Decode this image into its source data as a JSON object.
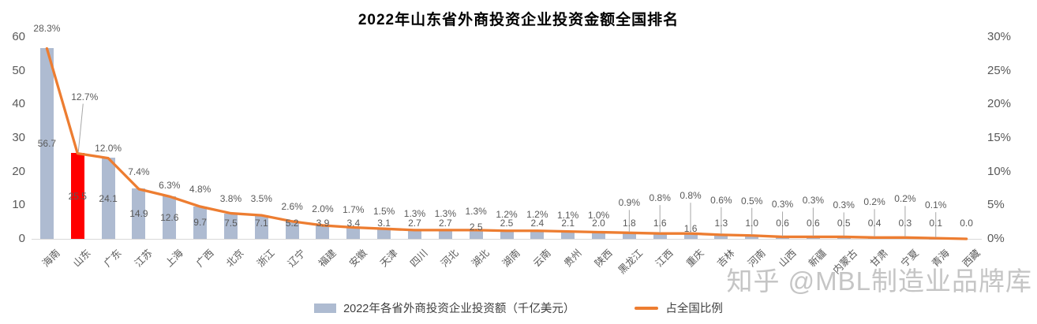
{
  "title": "2022年山东省外商投资企业投资金额全国排名",
  "watermark": "知乎 @MBL制造业品牌库",
  "legend": {
    "bar_label": "2022年各省外商投资企业投资额（千亿美元）",
    "line_label": "占全国比例"
  },
  "colors": {
    "bar": "#AEBBD1",
    "bar_highlight": "#FF0000",
    "line": "#ED7D31",
    "leader": "#A6A6A6",
    "baseline": "#D9D9D9",
    "axis_text": "#595959"
  },
  "chart_data": {
    "type": "bar-line-combo",
    "title": "2022年山东省外商投资企业投资金额全国排名",
    "categories": [
      "海南",
      "山东",
      "广东",
      "江苏",
      "上海",
      "广西",
      "北京",
      "浙江",
      "辽宁",
      "福建",
      "安徽",
      "天津",
      "四川",
      "河北",
      "湖北",
      "湖南",
      "云南",
      "贵州",
      "陕西",
      "黑龙江",
      "江西",
      "重庆",
      "吉林",
      "河南",
      "山西",
      "新疆",
      "内蒙古",
      "甘肃",
      "宁夏",
      "青海",
      "西藏"
    ],
    "series": [
      {
        "name": "2022年各省外商投资企业投资额（千亿美元）",
        "type": "bar",
        "axis": "left",
        "highlight_index": 1,
        "values": [
          56.7,
          25.5,
          24.1,
          14.9,
          12.6,
          9.7,
          7.5,
          7.1,
          5.2,
          3.9,
          3.4,
          3.1,
          2.7,
          2.7,
          2.5,
          2.5,
          2.4,
          2.1,
          2.0,
          1.8,
          1.6,
          1.6,
          1.3,
          1.0,
          0.6,
          0.6,
          0.5,
          0.4,
          0.3,
          0.1,
          0.0
        ],
        "labels": [
          "56.7",
          "25.5",
          "24.1",
          "14.9",
          "12.6",
          "9.7",
          "7.5",
          "7.1",
          "5.2",
          "3.9",
          "3.4",
          "3.1",
          "2.7",
          "2.7",
          "2.5",
          "2.5",
          "2.4",
          "2.1",
          "2.0",
          "1.8",
          "1.6",
          "1.6",
          "1.3",
          "1.0",
          "0.6",
          "0.6",
          "0.5",
          "0.4",
          "0.3",
          "0.1",
          "0.0"
        ]
      },
      {
        "name": "占全国比例",
        "type": "line",
        "axis": "right",
        "values_pct": [
          28.3,
          12.7,
          12.0,
          7.4,
          6.3,
          4.8,
          3.8,
          3.5,
          2.6,
          2.0,
          1.7,
          1.5,
          1.3,
          1.3,
          1.3,
          1.2,
          1.2,
          1.1,
          1.0,
          0.9,
          0.8,
          0.8,
          0.6,
          0.5,
          0.3,
          0.3,
          0.3,
          0.2,
          0.2,
          0.1,
          0.0
        ],
        "labels": [
          "28.3%",
          "12.7%",
          "12.0%",
          "7.4%",
          "6.3%",
          "4.8%",
          "3.8%",
          "3.5%",
          "2.6%",
          "2.0%",
          "1.7%",
          "1.5%",
          "1.3%",
          "1.3%",
          "1.3%",
          "1.2%",
          "1.2%",
          "1.1%",
          "1.0%",
          "0.9%",
          "0.8%",
          "0.8%",
          "0.6%",
          "0.5%",
          "0.3%",
          "0.3%",
          "0.3%",
          "0.2%",
          "0.2%",
          "0.1%",
          null
        ]
      }
    ],
    "left_axis": {
      "ticks": [
        "0",
        "10",
        "20",
        "30",
        "40",
        "50",
        "60"
      ],
      "max": 60
    },
    "right_axis": {
      "ticks": [
        "0%",
        "5%",
        "10%",
        "15%",
        "20%",
        "25%",
        "30%"
      ],
      "max_pct": 30
    },
    "grid": "off",
    "legend_position": "bottom"
  }
}
